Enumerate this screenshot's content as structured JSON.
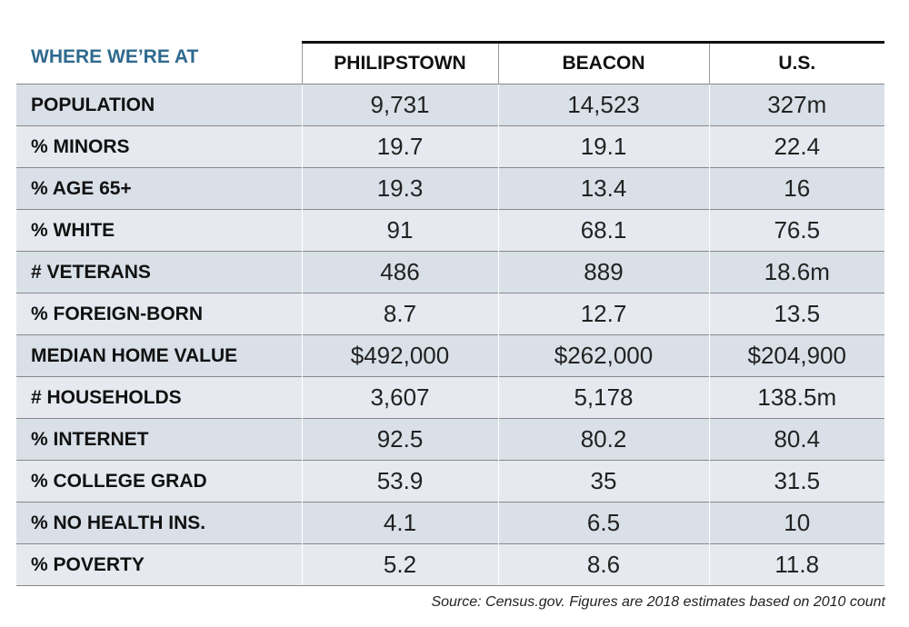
{
  "title": "WHERE WE’RE AT",
  "table": {
    "header": [
      "PHILIPSTOWN",
      "BEACON",
      "U.S."
    ],
    "rows": [
      [
        "POPULATION",
        "9,731",
        "14,523",
        "327m"
      ],
      [
        "% MINORS",
        "19.7",
        "19.1",
        "22.4"
      ],
      [
        "% AGE 65+",
        "19.3",
        "13.4",
        "16"
      ],
      [
        "% WHITE",
        "91",
        "68.1",
        "76.5"
      ],
      [
        "# VETERANS",
        "486",
        "889",
        "18.6m"
      ],
      [
        "% FOREIGN-BORN",
        "8.7",
        "12.7",
        "13.5"
      ],
      [
        "MEDIAN HOME VALUE",
        "$492,000",
        "$262,000",
        "$204,900"
      ],
      [
        "# HOUSEHOLDS",
        "3,607",
        "5,178",
        "138.5m"
      ],
      [
        "% INTERNET",
        "92.5",
        "80.2",
        "80.4"
      ],
      [
        "% COLLEGE GRAD",
        "53.9",
        "35",
        "31.5"
      ],
      [
        "% NO HEALTH INS.",
        "4.1",
        "6.5",
        "10"
      ],
      [
        "% POVERTY",
        "5.2",
        "8.6",
        "11.8"
      ]
    ]
  },
  "source": "Source: Census.gov. Figures are 2018 estimates based on 2010 count"
}
